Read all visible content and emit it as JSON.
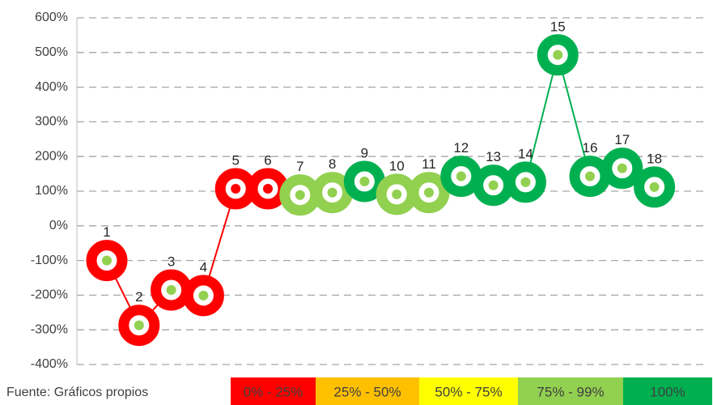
{
  "chart_data": {
    "type": "ring-scatter",
    "categories": [
      "1",
      "2",
      "3",
      "4",
      "5",
      "6",
      "7",
      "8",
      "9",
      "10",
      "11",
      "12",
      "13",
      "14",
      "15",
      "16",
      "17",
      "18"
    ],
    "values": [
      -100,
      -287,
      -185,
      -201,
      107,
      107,
      89,
      96,
      128,
      91,
      96,
      143,
      117,
      126,
      493,
      143,
      166,
      112
    ],
    "ring_colors": [
      "#ff0000",
      "#ff0000",
      "#ff0000",
      "#ff0000",
      "#ff0000",
      "#ff0000",
      "#92d050",
      "#92d050",
      "#00b050",
      "#92d050",
      "#92d050",
      "#00b050",
      "#00b050",
      "#00b050",
      "#00b050",
      "#00b050",
      "#00b050",
      "#00b050"
    ],
    "dot_colors": [
      "#92d050",
      "#92d050",
      "#92d050",
      "#92d050",
      "#ff0000",
      "#ff0000",
      "#92d050",
      "#92d050",
      "#92d050",
      "#92d050",
      "#92d050",
      "#92d050",
      "#92d050",
      "#92d050",
      "#92d050",
      "#92d050",
      "#92d050",
      "#92d050"
    ],
    "ylim": [
      -400,
      600
    ],
    "yticks": [
      {
        "value": -400,
        "label": "-400%"
      },
      {
        "value": -300,
        "label": "-300%"
      },
      {
        "value": -200,
        "label": "-200%"
      },
      {
        "value": -100,
        "label": "-100%"
      },
      {
        "value": 0,
        "label": "0%"
      },
      {
        "value": 100,
        "label": "100%"
      },
      {
        "value": 200,
        "label": "200%"
      },
      {
        "value": 300,
        "label": "300%"
      },
      {
        "value": 400,
        "label": "400%"
      },
      {
        "value": 500,
        "label": "500%"
      },
      {
        "value": 600,
        "label": "600%"
      }
    ],
    "grid": true,
    "source": "Fuente: Gráficos propios",
    "legend": [
      {
        "name": "0% - 25%",
        "color": "#ff0000"
      },
      {
        "name": "25% - 50%",
        "color": "#ffc000"
      },
      {
        "name": "50% - 75%",
        "color": "#ffff00"
      },
      {
        "name": "75% - 99%",
        "color": "#92d050"
      },
      {
        "name": "100%",
        "color": "#00b050"
      }
    ]
  }
}
